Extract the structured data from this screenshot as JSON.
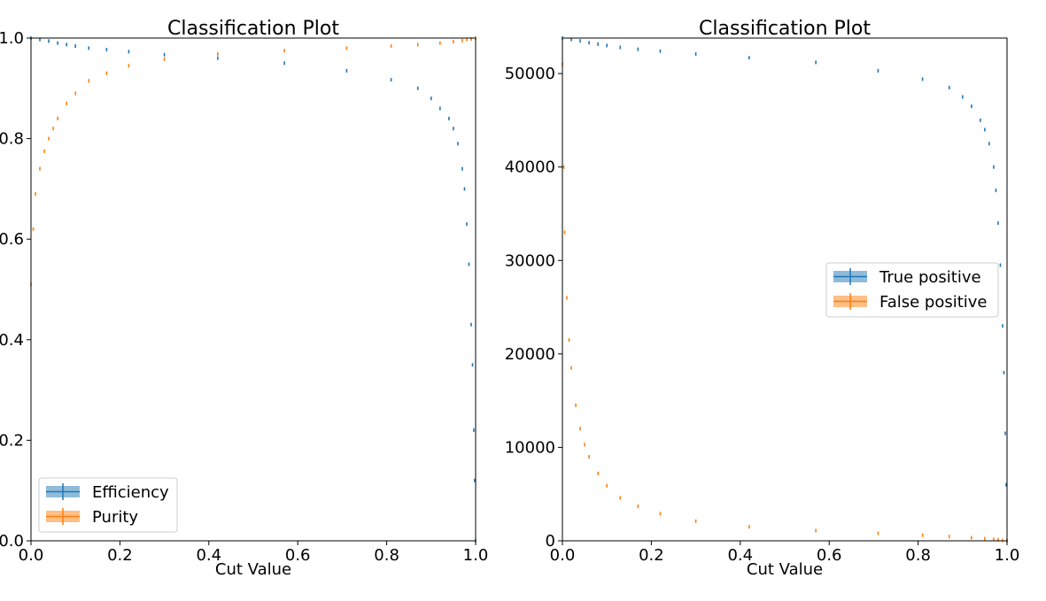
{
  "colors": {
    "blue": "#1f77b4",
    "orange": "#ff7f0e"
  },
  "chart_data": [
    {
      "type": "scatter",
      "title": "Classification Plot",
      "xlabel": "Cut Value",
      "ylabel": "",
      "xlim": [
        0.0,
        1.0
      ],
      "ylim": [
        0.0,
        1.0
      ],
      "xticks": [
        "0.0",
        "0.2",
        "0.4",
        "0.6",
        "0.8",
        "1.0"
      ],
      "yticks": [
        "0.0",
        "0.2",
        "0.4",
        "0.6",
        "0.8",
        "1.0"
      ],
      "legend_position": "lower-left",
      "grid": false,
      "series": [
        {
          "name": "Efficiency",
          "color": "#1f77b4",
          "x": [
            0.0,
            0.02,
            0.04,
            0.06,
            0.08,
            0.1,
            0.13,
            0.17,
            0.22,
            0.3,
            0.42,
            0.57,
            0.71,
            0.81,
            0.87,
            0.9,
            0.92,
            0.94,
            0.95,
            0.96,
            0.97,
            0.975,
            0.98,
            0.985,
            0.99,
            0.993,
            0.996,
            0.998,
            1.0
          ],
          "y": [
            1.0,
            0.997,
            0.994,
            0.99,
            0.987,
            0.984,
            0.98,
            0.977,
            0.973,
            0.967,
            0.96,
            0.95,
            0.935,
            0.917,
            0.9,
            0.88,
            0.86,
            0.84,
            0.82,
            0.79,
            0.74,
            0.7,
            0.63,
            0.55,
            0.43,
            0.35,
            0.22,
            0.12,
            0.0
          ]
        },
        {
          "name": "Purity",
          "color": "#ff7f0e",
          "x": [
            0.0,
            0.005,
            0.01,
            0.02,
            0.03,
            0.04,
            0.05,
            0.06,
            0.08,
            0.1,
            0.13,
            0.17,
            0.22,
            0.3,
            0.42,
            0.57,
            0.71,
            0.81,
            0.87,
            0.92,
            0.95,
            0.97,
            0.98,
            0.99,
            1.0
          ],
          "y": [
            0.51,
            0.62,
            0.69,
            0.74,
            0.775,
            0.8,
            0.82,
            0.84,
            0.87,
            0.89,
            0.915,
            0.93,
            0.945,
            0.958,
            0.968,
            0.975,
            0.98,
            0.984,
            0.987,
            0.99,
            0.993,
            0.995,
            0.997,
            0.998,
            1.0
          ]
        }
      ]
    },
    {
      "type": "scatter",
      "title": "Classification Plot",
      "xlabel": "Cut Value",
      "ylabel": "",
      "xlim": [
        0.0,
        1.0
      ],
      "ylim": [
        0,
        53800
      ],
      "xticks": [
        "0.0",
        "0.2",
        "0.4",
        "0.6",
        "0.8",
        "1.0"
      ],
      "yticks": [
        "0",
        "10000",
        "20000",
        "30000",
        "40000",
        "50000"
      ],
      "legend_position": "center-right",
      "grid": false,
      "series": [
        {
          "name": "True positive",
          "color": "#1f77b4",
          "x": [
            0.0,
            0.02,
            0.04,
            0.06,
            0.08,
            0.1,
            0.13,
            0.17,
            0.22,
            0.3,
            0.42,
            0.57,
            0.71,
            0.81,
            0.87,
            0.9,
            0.92,
            0.94,
            0.95,
            0.96,
            0.97,
            0.975,
            0.98,
            0.985,
            0.99,
            0.993,
            0.996,
            0.998,
            1.0
          ],
          "y": [
            53800,
            53650,
            53500,
            53300,
            53150,
            53000,
            52800,
            52600,
            52400,
            52100,
            51700,
            51200,
            50300,
            49400,
            48500,
            47500,
            46500,
            45000,
            44000,
            42500,
            40000,
            37500,
            34000,
            29500,
            23000,
            18000,
            11500,
            6000,
            0
          ]
        },
        {
          "name": "False positive",
          "color": "#ff7f0e",
          "x": [
            0.0,
            0.003,
            0.005,
            0.01,
            0.015,
            0.02,
            0.03,
            0.04,
            0.05,
            0.06,
            0.08,
            0.1,
            0.13,
            0.17,
            0.22,
            0.3,
            0.42,
            0.57,
            0.71,
            0.81,
            0.87,
            0.92,
            0.95,
            0.97,
            0.98,
            0.99,
            1.0
          ],
          "y": [
            51000,
            40000,
            33000,
            26000,
            21500,
            18500,
            14500,
            12000,
            10300,
            9000,
            7200,
            5900,
            4600,
            3700,
            2900,
            2100,
            1500,
            1100,
            800,
            600,
            450,
            330,
            230,
            150,
            100,
            50,
            0
          ]
        }
      ]
    }
  ]
}
